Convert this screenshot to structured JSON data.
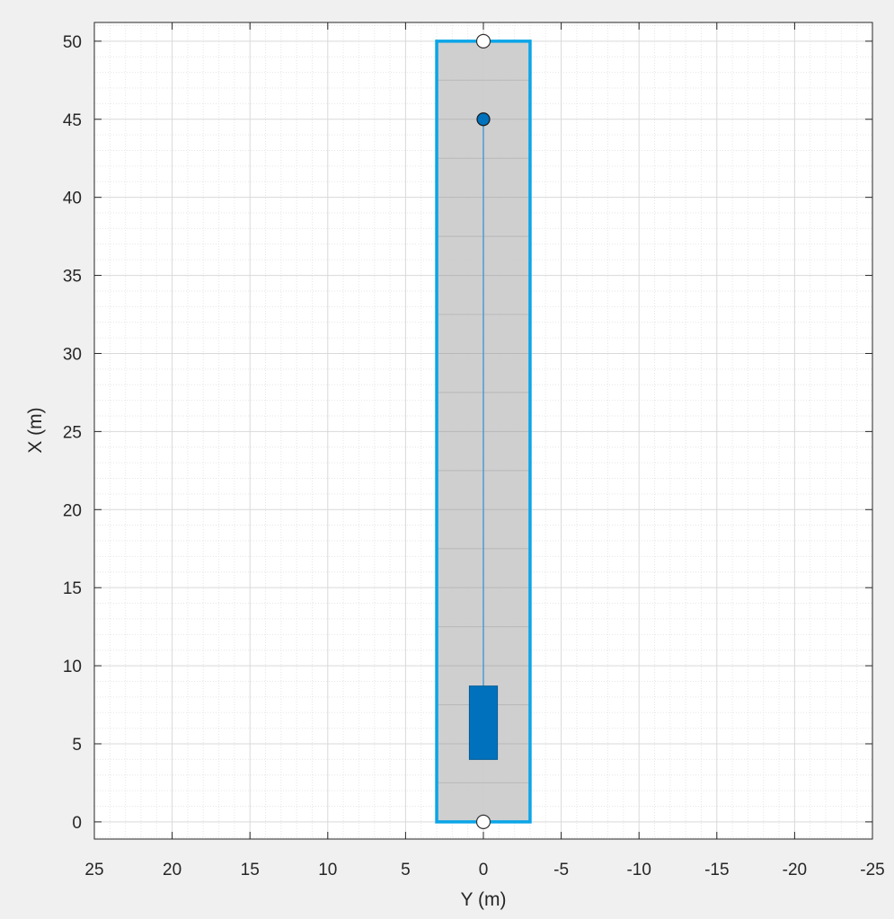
{
  "chart_data": {
    "type": "scatter",
    "xlabel": "Y (m)",
    "ylabel": "X (m)",
    "xlim": [
      25,
      -25
    ],
    "ylim": [
      -1.1,
      51.2
    ],
    "x_ticks": [
      25,
      20,
      15,
      10,
      5,
      0,
      -5,
      -10,
      -15,
      -20,
      -25
    ],
    "x_tick_labels": [
      "25",
      "20",
      "15",
      "10",
      "5",
      "0",
      "-5",
      "-10",
      "-15",
      "-20",
      "-25"
    ],
    "y_ticks": [
      0,
      5,
      10,
      15,
      20,
      25,
      30,
      35,
      40,
      45,
      50
    ],
    "y_tick_labels": [
      "0",
      "5",
      "10",
      "15",
      "20",
      "25",
      "30",
      "35",
      "40",
      "45",
      "50"
    ],
    "grid": true,
    "minor_grid": true,
    "road": {
      "centerline": [
        [
          0,
          0
        ],
        [
          0,
          50
        ]
      ],
      "y_range": [
        3,
        -3
      ],
      "x_range": [
        0,
        50
      ],
      "lane_line_spacing": 2.5
    },
    "road_endpoints": [
      [
        0,
        0
      ],
      [
        0,
        50
      ]
    ],
    "vehicle": {
      "x_range": [
        4,
        8.7
      ],
      "y_range": [
        0.9,
        -0.9
      ]
    },
    "trajectory": [
      [
        0,
        8.7
      ],
      [
        0,
        45
      ]
    ],
    "waypoint": [
      0,
      45
    ],
    "colors": {
      "road_fill": "#cccccc",
      "road_edge": "#0aa5e8",
      "vehicle": "#0072bd",
      "trajectory": "#4b9cd3",
      "lane_line": "#b8b8b8",
      "grid_major": "#d9d9d9",
      "grid_minor": "#e6e6e6",
      "axes_bg": "#ffffff",
      "figure_bg": "#f0f0f0"
    }
  }
}
